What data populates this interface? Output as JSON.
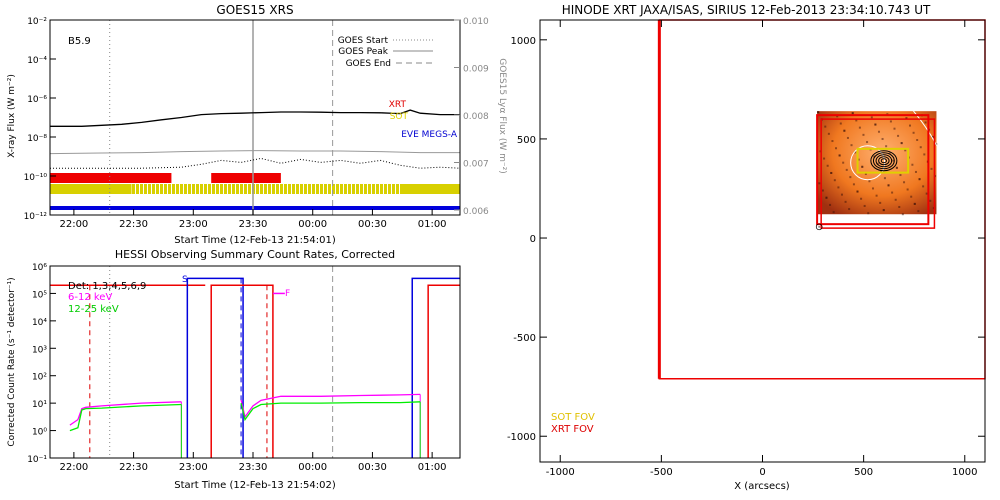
{
  "chart_data": [
    {
      "id": "goes",
      "type": "line",
      "title": "GOES15 XRS",
      "xlabel": "Start Time (12-Feb-13 21:54:01)",
      "ylabel": "X-ray Flux (W m⁻²)",
      "y2label": "GOES15 Lyα Flux (W m⁻²)",
      "xlim_minutes": [
        -6,
        200
      ],
      "x_ticks": [
        "22:00",
        "22:30",
        "23:00",
        "23:30",
        "00:00",
        "00:30",
        "01:00"
      ],
      "y_log": true,
      "ylim_exp": [
        -12,
        -2
      ],
      "y_ticks": [
        "10⁻²",
        "10⁻⁴",
        "10⁻⁶",
        "10⁻⁸",
        "10⁻¹⁰",
        "10⁻¹²"
      ],
      "y2lim": [
        0.006,
        0.01
      ],
      "y2_ticks": [
        "0.010",
        "0.009",
        "0.008",
        "0.007",
        "0.006"
      ],
      "class_label": "B5.9",
      "legend": [
        {
          "label": "GOES Start",
          "style": "dotted"
        },
        {
          "label": "GOES Peak",
          "style": "solid"
        },
        {
          "label": "GOES End",
          "style": "dashed"
        }
      ],
      "instrument_labels": [
        {
          "label": "XRT",
          "color": "#e00000"
        },
        {
          "label": "SOT",
          "color": "#e0d000"
        },
        {
          "label": "EVE MEGS-A",
          "color": "#0000d0"
        }
      ],
      "event_lines_minutes": {
        "start": 24,
        "peak": 96,
        "end": 136
      },
      "series": [
        {
          "name": "long",
          "color": "#000000",
          "x": [
            -6,
            10,
            20,
            30,
            40,
            50,
            60,
            70,
            80,
            90,
            100,
            110,
            120,
            130,
            140,
            150,
            160,
            170,
            175,
            180,
            190,
            200
          ],
          "y_exp": [
            -7.45,
            -7.45,
            -7.4,
            -7.35,
            -7.25,
            -7.12,
            -7.0,
            -6.85,
            -6.8,
            -6.78,
            -6.75,
            -6.72,
            -6.72,
            -6.73,
            -6.75,
            -6.75,
            -6.76,
            -6.8,
            -6.62,
            -6.78,
            -6.85,
            -6.85
          ]
        },
        {
          "name": "short",
          "color": "#999999",
          "x": [
            -6,
            20,
            40,
            60,
            80,
            100,
            120,
            140,
            160,
            180,
            200
          ],
          "y_exp": [
            -8.85,
            -8.82,
            -8.8,
            -8.75,
            -8.72,
            -8.7,
            -8.72,
            -8.72,
            -8.75,
            -8.8,
            -8.8
          ]
        },
        {
          "name": "lya",
          "color": "#000000",
          "x": [
            -6,
            40,
            60,
            70,
            80,
            90,
            100,
            110,
            120,
            130,
            140,
            150,
            160,
            170,
            180,
            190,
            200
          ],
          "y_exp": [
            -9.6,
            -9.6,
            -9.55,
            -9.4,
            -9.2,
            -9.3,
            -9.1,
            -9.35,
            -9.15,
            -9.3,
            -9.2,
            -9.35,
            -9.2,
            -9.45,
            -9.6,
            -9.55,
            -9.6
          ]
        }
      ],
      "bars": [
        {
          "name": "XRT",
          "color": "#ee0000",
          "segments": [
            [
              -6,
              55
            ],
            [
              75,
              110
            ]
          ]
        },
        {
          "name": "SOT",
          "color": "#d8d000",
          "segments": [
            [
              -6,
              35
            ],
            [
              35,
              200
            ]
          ]
        },
        {
          "name": "EVE MEGS-A",
          "color": "#0000dd",
          "segments": [
            [
              -6,
              200
            ]
          ]
        }
      ]
    },
    {
      "id": "hessi",
      "type": "line",
      "title": "HESSI Observing Summary Count Rates, Corrected",
      "xlabel": "Start Time (12-Feb-13 21:54:02)",
      "ylabel": "Corrected Count Rate (s⁻¹ detector⁻¹)",
      "xlim_minutes": [
        -6,
        200
      ],
      "x_ticks": [
        "22:00",
        "22:30",
        "23:00",
        "23:30",
        "00:00",
        "00:30",
        "01:00"
      ],
      "y_log": true,
      "ylim_exp": [
        -1,
        6
      ],
      "y_ticks": [
        "10⁶",
        "10⁵",
        "10⁴",
        "10³",
        "10²",
        "10¹",
        "10⁰",
        "10⁻¹"
      ],
      "detectors_label": "Det: 1,3,4,5,6,9",
      "flag_labels": [
        "S",
        "F"
      ],
      "series": [
        {
          "name": "6-12 keV",
          "color": "#ff00ff",
          "x": [
            4,
            8,
            10,
            12,
            20,
            40,
            60,
            80,
            90,
            92,
            96,
            100,
            110,
            130,
            150,
            170,
            180
          ],
          "y_exp": [
            0.2,
            0.4,
            0.8,
            0.85,
            0.9,
            1.0,
            1.05,
            1.12,
            1.12,
            0.5,
            0.9,
            1.1,
            1.25,
            1.25,
            1.28,
            1.3,
            1.32
          ]
        },
        {
          "name": "12-25 keV",
          "color": "#00ee00",
          "x": [
            4,
            8,
            10,
            12,
            20,
            40,
            60,
            80,
            90,
            92,
            96,
            100,
            110,
            130,
            150,
            170,
            180
          ],
          "y_exp": [
            0.0,
            0.1,
            0.75,
            0.8,
            0.82,
            0.9,
            0.95,
            1.0,
            1.0,
            0.4,
            0.8,
            0.95,
            1.0,
            1.0,
            1.02,
            1.02,
            1.05
          ]
        }
      ],
      "attenuator_steps": [
        {
          "color": "#0000dd",
          "segments": [
            [
              60,
              5.55
            ],
            [
              91,
              5.55
            ],
            [
              180,
              5.55
            ]
          ]
        },
        {
          "color": "#ee0000",
          "segments": [
            [
              -6,
              5.3
            ],
            [
              72,
              5.3
            ],
            [
              194,
              5.3
            ]
          ]
        }
      ]
    },
    {
      "id": "hinode",
      "type": "scatter",
      "title": "HINODE XRT JAXA/ISAS, SIRIUS 12-Feb-2013 23:34:10.743 UT",
      "xlabel": "X (arcsecs)",
      "xlim": [
        -1100,
        1100
      ],
      "ylim": [
        -1130,
        1100
      ],
      "x_ticks": [
        -1000,
        -500,
        0,
        500,
        1000
      ],
      "y_ticks": [
        1000,
        500,
        0,
        -500,
        -1000
      ],
      "legend": [
        {
          "label": "SOT FOV",
          "color": "#e0c000"
        },
        {
          "label": "XRT FOV",
          "color": "#dd0000"
        }
      ],
      "solar_north_label": "⊙",
      "fov_boxes": [
        {
          "label": "XRT FOV",
          "color": "#ee0000",
          "x": [
            -510,
            1100
          ],
          "y": [
            -710,
            1100
          ]
        },
        {
          "label": "XRT FOV",
          "color": "#ee0000",
          "x": [
            270,
            820
          ],
          "y": [
            70,
            620
          ]
        },
        {
          "label": "SOT FOV",
          "color": "#e0d000",
          "x": [
            470,
            720
          ],
          "y": [
            330,
            450
          ]
        }
      ],
      "image_extent": {
        "x": [
          270,
          860
        ],
        "y": [
          120,
          640
        ]
      }
    }
  ]
}
